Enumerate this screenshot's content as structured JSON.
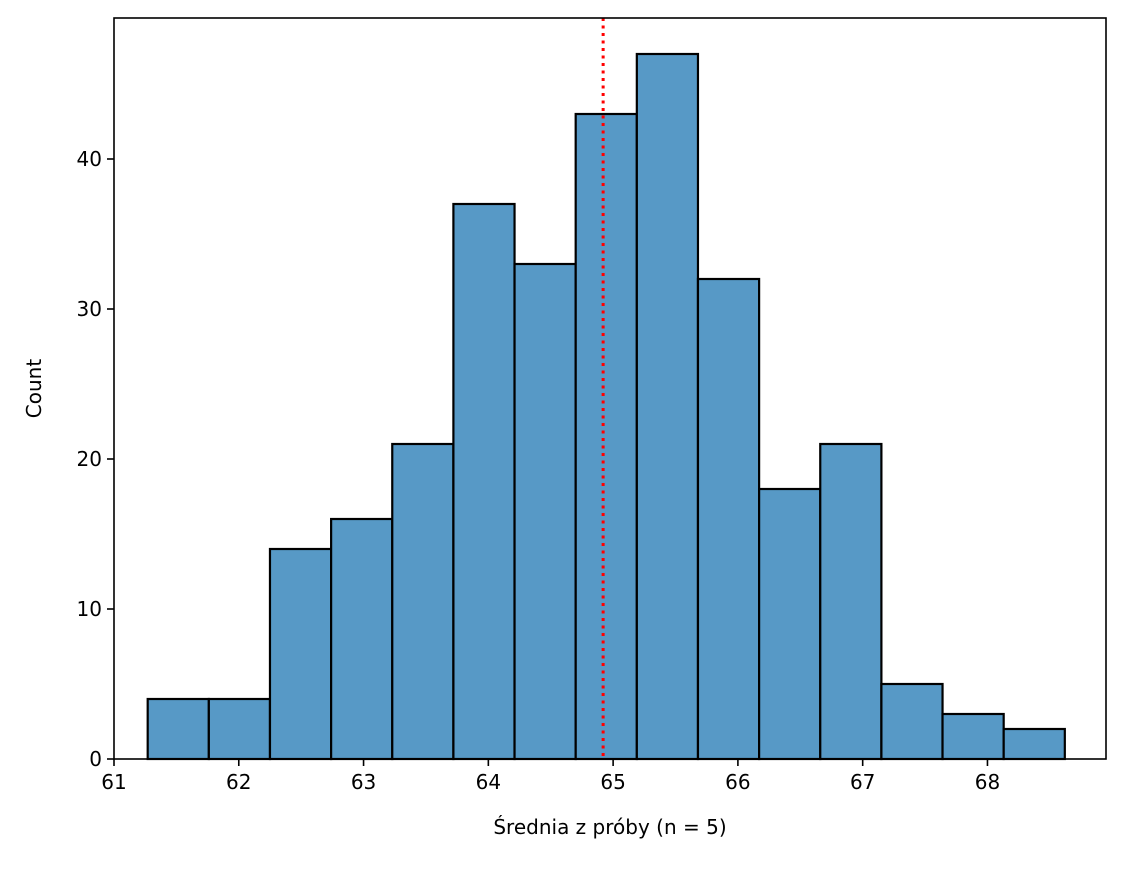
{
  "chart_data": {
    "type": "bar",
    "subtype": "histogram",
    "title": "",
    "xlabel": "Średnia z próby (n = 5)",
    "ylabel": "Count",
    "bin_edges": [
      61.27,
      61.76,
      62.25,
      62.74,
      63.23,
      63.72,
      64.21,
      64.7,
      65.19,
      65.68,
      66.17,
      66.66,
      67.15,
      67.64,
      68.13,
      68.62
    ],
    "values": [
      4,
      4,
      14,
      16,
      21,
      37,
      33,
      43,
      47,
      32,
      18,
      21,
      5,
      3,
      2
    ],
    "reference_line": {
      "x": 64.92,
      "style": "dotted",
      "color": "#ff0000"
    },
    "xlim": [
      61.0,
      68.95
    ],
    "ylim": [
      0,
      49.4
    ],
    "xticks": [
      61,
      62,
      63,
      64,
      65,
      66,
      67,
      68
    ],
    "yticks": [
      0,
      10,
      20,
      30,
      40
    ],
    "grid": false,
    "colors": {
      "bar_fill": "#5799c6",
      "bar_edge": "#000000"
    }
  }
}
